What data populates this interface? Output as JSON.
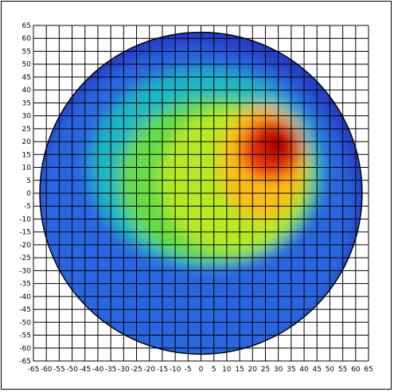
{
  "chart_data": {
    "type": "heatmap",
    "title": "",
    "xlabel": "",
    "ylabel": "",
    "xlim": [
      -65,
      65
    ],
    "ylim": [
      -65,
      65
    ],
    "grid": true,
    "grid_step": 5,
    "boundary": "circle",
    "radius": 62.5,
    "center": [
      0,
      0
    ],
    "x_ticks": [
      "-65",
      "-60",
      "-55",
      "-50",
      "-45",
      "-40",
      "-35",
      "-30",
      "-25",
      "-20",
      "-15",
      "-10",
      "-5",
      "0",
      "5",
      "10",
      "15",
      "20",
      "25",
      "30",
      "35",
      "40",
      "45",
      "50",
      "55",
      "60",
      "65"
    ],
    "y_ticks": [
      "65",
      "60",
      "55",
      "50",
      "45",
      "40",
      "35",
      "30",
      "25",
      "20",
      "15",
      "10",
      "5",
      "0",
      "-5",
      "-10",
      "-15",
      "-20",
      "-25",
      "-30",
      "-35",
      "-40",
      "-45",
      "-50",
      "-55",
      "-60",
      "-65"
    ],
    "colorscale": [
      "#1f2fb8",
      "#2f55d8",
      "#0fa8ff",
      "#2fd06a",
      "#8ae52a",
      "#f7f21a",
      "#ff9a10",
      "#ea1a0a",
      "#b40000"
    ],
    "regions": [
      {
        "level": 0.15,
        "cx": -2,
        "cy": -5,
        "rx": 62,
        "ry": 62
      },
      {
        "level": 0.3,
        "cx": 2,
        "cy": 10,
        "rx": 45,
        "ry": 38
      },
      {
        "level": 0.45,
        "cx": 6,
        "cy": 5,
        "rx": 38,
        "ry": 32
      },
      {
        "level": 0.55,
        "cx": 12,
        "cy": 5,
        "rx": 28,
        "ry": 28
      },
      {
        "level": 0.7,
        "cx": 24,
        "cy": 12,
        "rx": 17,
        "ry": 22
      },
      {
        "level": 0.85,
        "cx": 27,
        "cy": 17,
        "rx": 12,
        "ry": 12
      },
      {
        "level": 1.0,
        "cx": 29,
        "cy": 19,
        "rx": 7,
        "ry": 7
      }
    ],
    "peak": {
      "x": 29,
      "y": 19
    }
  }
}
